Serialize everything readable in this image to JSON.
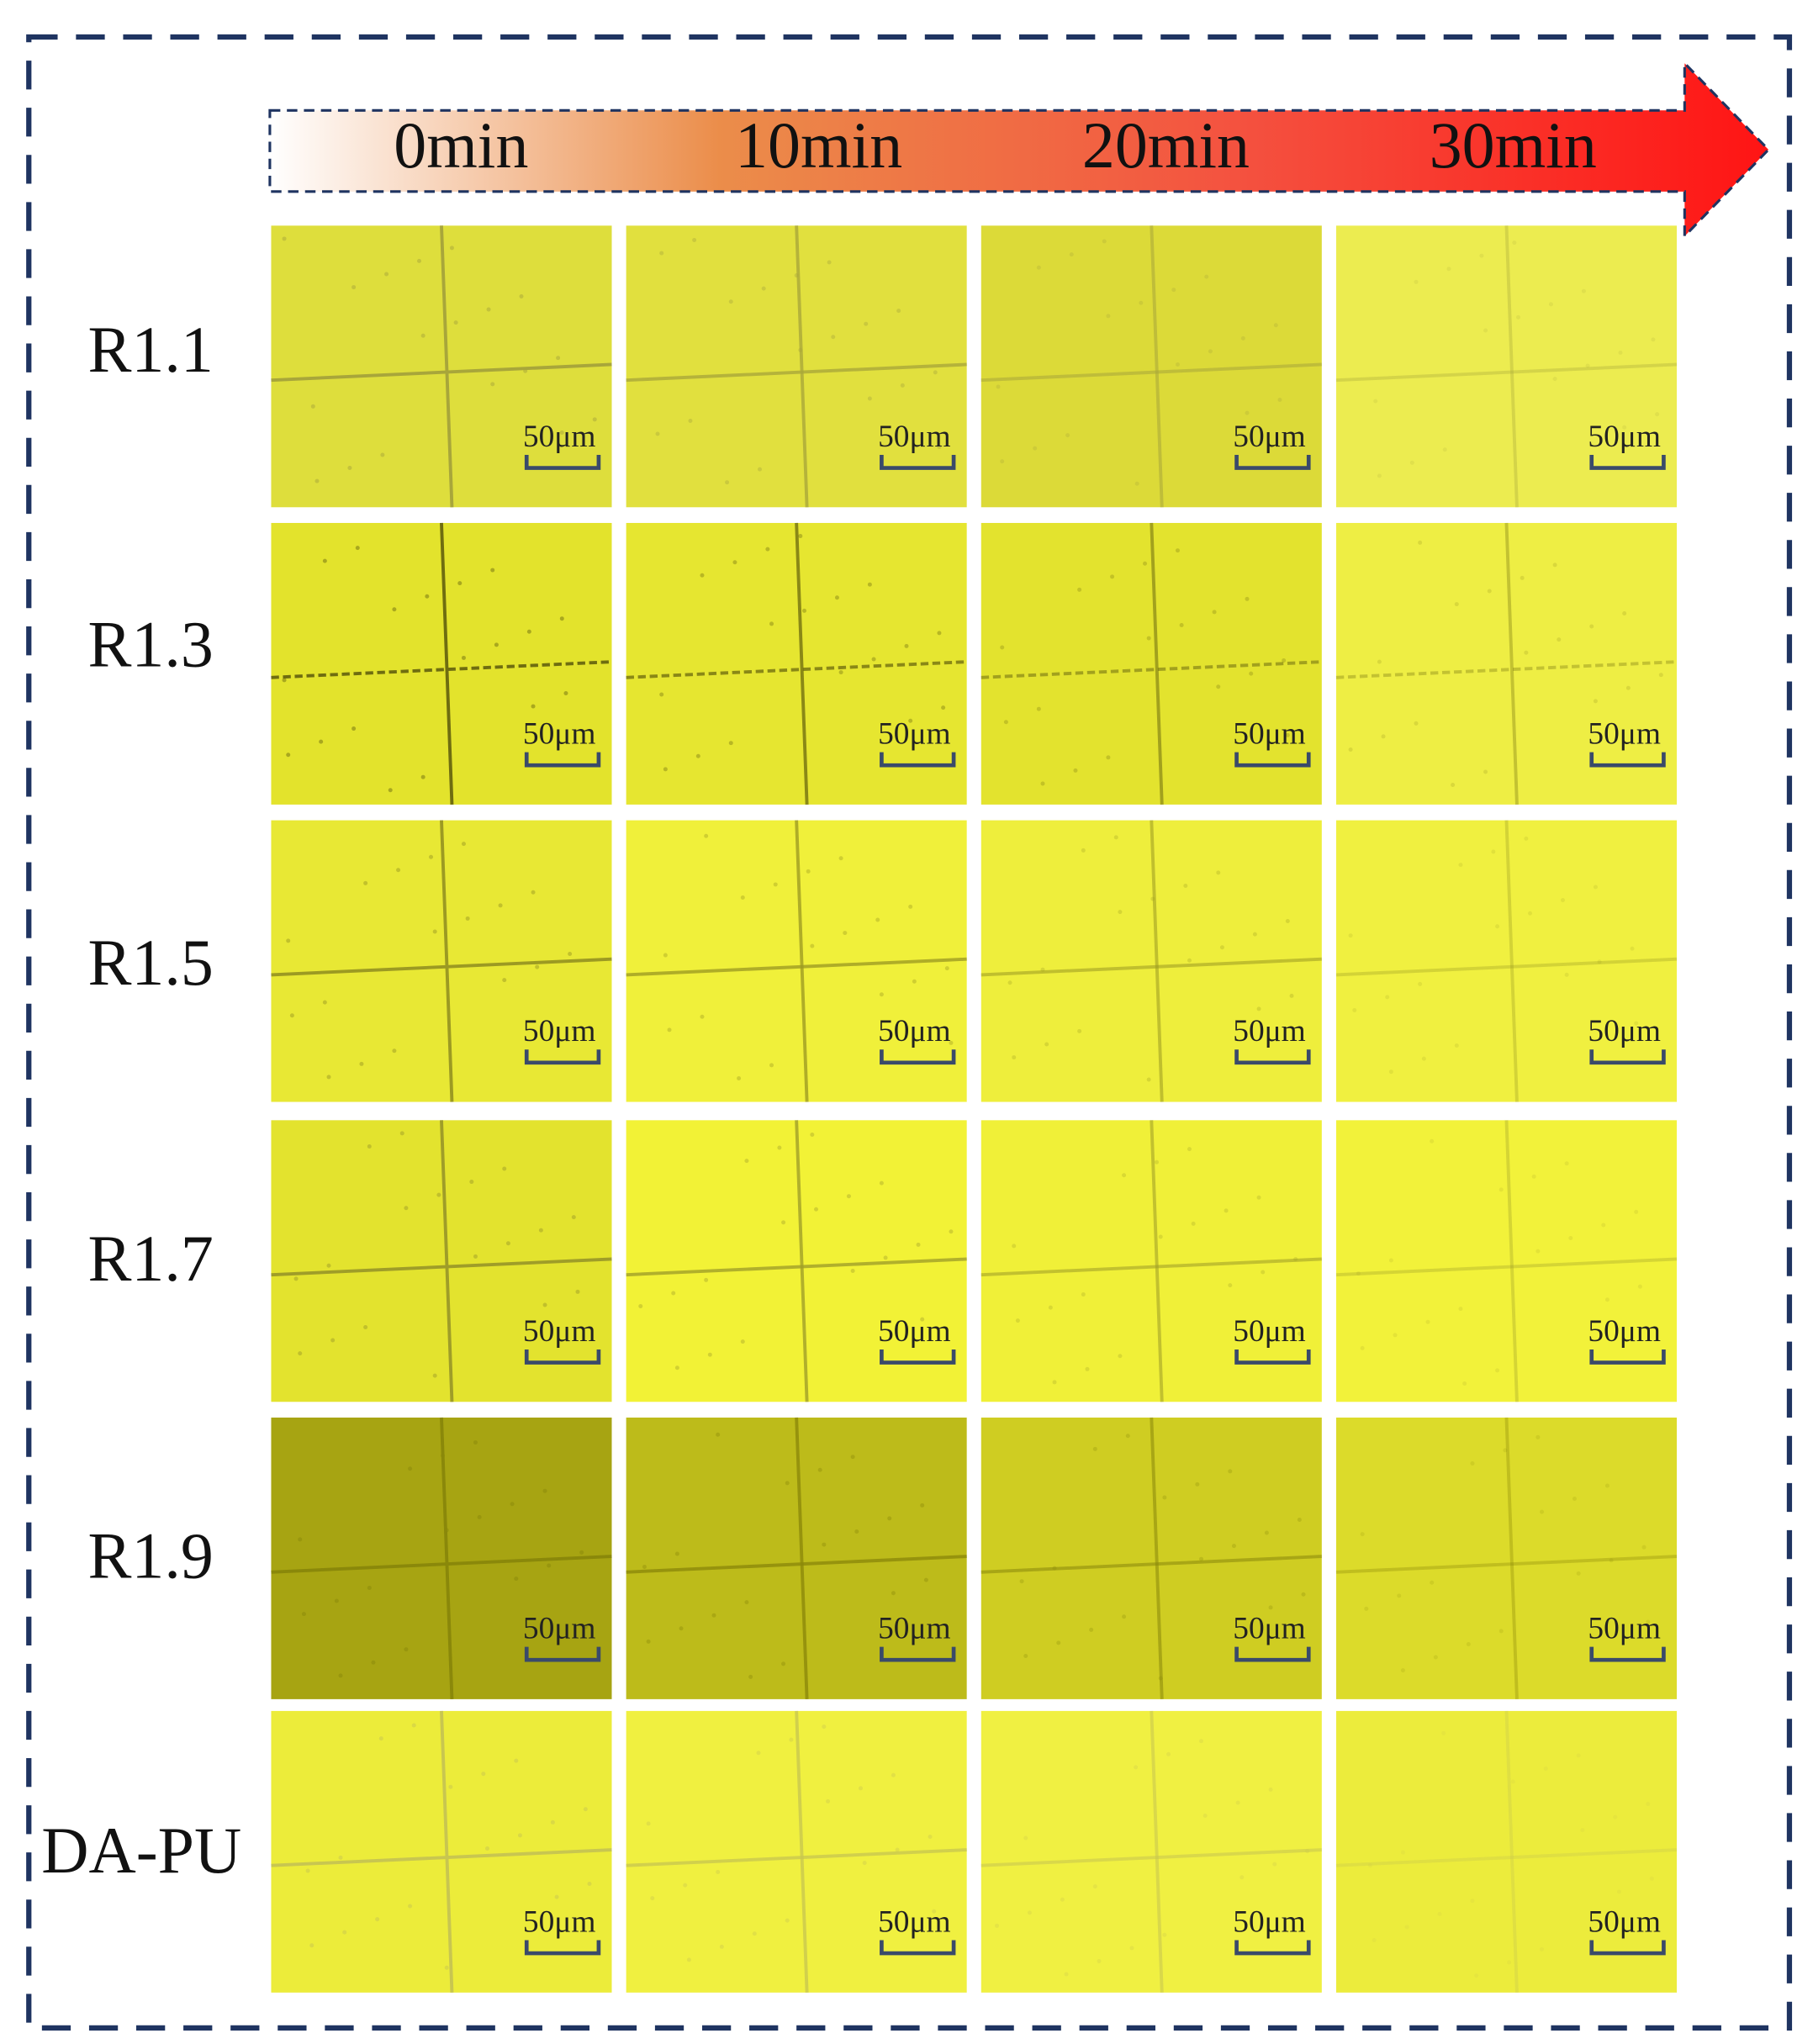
{
  "header": {
    "times": [
      "0min",
      "10min",
      "20min",
      "30min"
    ]
  },
  "rows": [
    {
      "label": "R1.1"
    },
    {
      "label": "R1.3"
    },
    {
      "label": "R1.5"
    },
    {
      "label": "R1.7"
    },
    {
      "label": "R1.9"
    },
    {
      "label": "DA-PU"
    }
  ],
  "scale_bar": "50μm"
}
